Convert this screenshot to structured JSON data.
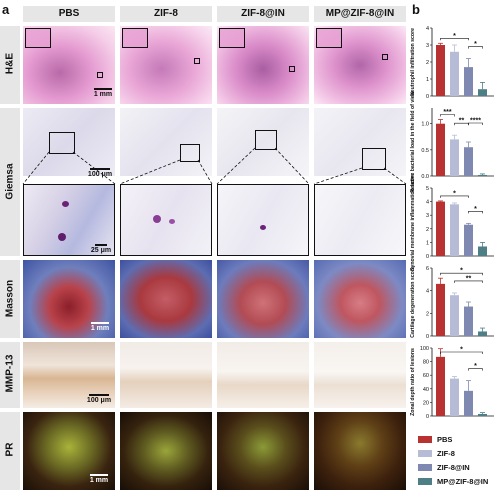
{
  "panel_a_letter": "a",
  "panel_b_letter": "b",
  "columns": [
    "PBS",
    "ZIF-8",
    "ZIF-8@IN",
    "MP@ZIF-8@IN"
  ],
  "rows": [
    "H&E",
    "Giemsa",
    "Masson",
    "MMP-13",
    "PR"
  ],
  "scale_bars": {
    "he": "1 mm",
    "giemsa_low": "100 μm",
    "giemsa_high": "25 μm",
    "masson": "1 mm",
    "mmp13": "100 μm",
    "pr": "1 mm"
  },
  "colors": {
    "PBS": "#b83232",
    "ZIF-8": "#b7bcd6",
    "ZIF-8@IN": "#7f88b0",
    "MP@ZIF-8@IN": "#4e7f86"
  },
  "chart_data": [
    {
      "type": "bar",
      "categories": [
        "PBS",
        "ZIF-8",
        "ZIF-8@IN",
        "MP@ZIF-8@IN"
      ],
      "values": [
        3.0,
        2.6,
        1.7,
        0.4
      ],
      "errors": [
        0.1,
        0.4,
        0.5,
        0.4
      ],
      "ylabel": "Neutrophil infiltration score",
      "ylim": [
        0,
        4
      ],
      "yticks": [
        0,
        1,
        2,
        3,
        4
      ],
      "significance": [
        {
          "from": 0,
          "to": 2,
          "label": "*"
        },
        {
          "from": 2,
          "to": 3,
          "label": "*"
        }
      ]
    },
    {
      "type": "bar",
      "categories": [
        "PBS",
        "ZIF-8",
        "ZIF-8@IN",
        "MP@ZIF-8@IN"
      ],
      "values": [
        1.0,
        0.7,
        0.55,
        0.02
      ],
      "errors": [
        0.08,
        0.08,
        0.1,
        0.02
      ],
      "ylabel": "Relative bacterial load in the field of view",
      "ylim": [
        0,
        1.3
      ],
      "yticks": [
        0.0,
        0.5,
        1.0
      ],
      "significance": [
        {
          "from": 0,
          "to": 1,
          "label": "***"
        },
        {
          "from": 1,
          "to": 2,
          "label": "**"
        },
        {
          "from": 2,
          "to": 3,
          "label": "****"
        }
      ]
    },
    {
      "type": "bar",
      "categories": [
        "PBS",
        "ZIF-8",
        "ZIF-8@IN",
        "MP@ZIF-8@IN"
      ],
      "values": [
        4.0,
        3.8,
        2.3,
        0.7
      ],
      "errors": [
        0.05,
        0.1,
        0.1,
        0.3
      ],
      "ylabel": "Synovial membrane inflammation score",
      "ylim": [
        0,
        5
      ],
      "yticks": [
        0,
        1,
        2,
        3,
        4,
        5
      ],
      "significance": [
        {
          "from": 0,
          "to": 2,
          "label": "*"
        },
        {
          "from": 2,
          "to": 3,
          "label": "*"
        }
      ]
    },
    {
      "type": "bar",
      "categories": [
        "PBS",
        "ZIF-8",
        "ZIF-8@IN",
        "MP@ZIF-8@IN"
      ],
      "values": [
        4.6,
        3.6,
        2.6,
        0.4
      ],
      "errors": [
        0.5,
        0.2,
        0.4,
        0.3
      ],
      "ylabel": "Cartilage degeneration score",
      "ylim": [
        0,
        6
      ],
      "yticks": [
        0,
        2,
        4,
        6
      ],
      "significance": [
        {
          "from": 0,
          "to": 3,
          "label": "*"
        },
        {
          "from": 1,
          "to": 3,
          "label": "**"
        }
      ]
    },
    {
      "type": "bar",
      "categories": [
        "PBS",
        "ZIF-8",
        "ZIF-8@IN",
        "MP@ZIF-8@IN"
      ],
      "values": [
        87,
        55,
        37,
        3
      ],
      "errors": [
        12,
        3,
        15,
        2
      ],
      "ylabel": "Zonal depth ratio of lesions",
      "ylim": [
        0,
        100
      ],
      "yticks": [
        0,
        20,
        40,
        60,
        80,
        100
      ],
      "significance": [
        {
          "from": 0,
          "to": 3,
          "label": "*"
        },
        {
          "from": 2,
          "to": 3,
          "label": "*"
        }
      ]
    }
  ],
  "legend": [
    {
      "label": "PBS",
      "color": "#b83232"
    },
    {
      "label": "ZIF-8",
      "color": "#b7bcd6"
    },
    {
      "label": "ZIF-8@IN",
      "color": "#7f88b0"
    },
    {
      "label": "MP@ZIF-8@IN",
      "color": "#4e7f86"
    }
  ]
}
